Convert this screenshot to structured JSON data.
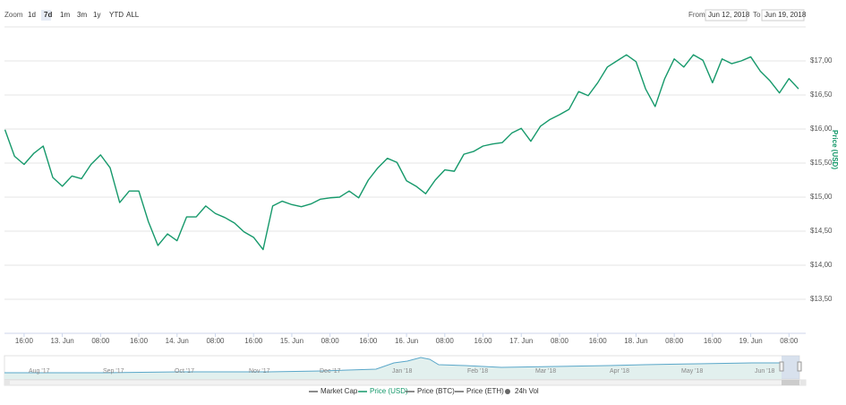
{
  "toolbar": {
    "zoom_label": "Zoom",
    "zoom_buttons": [
      "1d",
      "7d",
      "1m",
      "3m",
      "1y",
      "YTD",
      "ALL"
    ],
    "active_button": 1,
    "from_label": "From",
    "from_date": "Jun 12, 2018",
    "to_label": "To",
    "to_date": "Jun 19, 2018"
  },
  "chart_data": {
    "type": "line",
    "ylabel": "Price (USD)",
    "x": [
      12,
      14,
      16,
      18,
      20,
      22,
      24,
      26,
      28,
      30,
      32,
      34,
      36,
      38,
      40,
      42,
      44,
      46,
      48,
      50,
      52,
      54,
      56,
      58,
      60,
      62,
      64,
      66,
      68,
      70,
      72,
      74,
      76,
      78,
      80,
      82,
      84,
      86,
      88,
      90,
      92,
      94,
      96,
      98,
      100,
      102,
      104,
      106,
      108,
      110,
      112,
      114,
      116,
      118,
      120,
      122,
      124,
      126,
      128,
      130,
      132,
      134,
      136,
      138,
      140,
      142,
      144,
      146,
      148,
      150,
      152,
      154,
      156,
      158,
      160,
      162,
      164,
      166,
      168,
      170,
      172,
      174,
      176,
      178
    ],
    "series": [
      {
        "name": "Price (USD)",
        "color": "#16996b",
        "values": [
          15.99,
          15.6,
          15.48,
          15.64,
          15.75,
          15.29,
          15.16,
          15.31,
          15.27,
          15.48,
          15.62,
          15.43,
          14.92,
          15.09,
          15.09,
          14.64,
          14.29,
          14.46,
          14.36,
          14.71,
          14.71,
          14.87,
          14.76,
          14.7,
          14.62,
          14.49,
          14.41,
          14.23,
          14.87,
          14.94,
          14.89,
          14.86,
          14.9,
          14.97,
          14.99,
          15.0,
          15.09,
          14.99,
          15.25,
          15.43,
          15.57,
          15.51,
          15.24,
          15.16,
          15.05,
          15.25,
          15.4,
          15.38,
          15.63,
          15.67,
          15.75,
          15.78,
          15.8,
          15.94,
          16.01,
          15.82,
          16.04,
          16.14,
          16.21,
          16.29,
          16.55,
          16.49,
          16.68,
          16.91,
          17.0,
          17.09,
          16.99,
          16.59,
          16.33,
          16.74,
          17.03,
          16.91,
          17.09,
          17.01,
          16.68,
          17.03,
          16.96,
          17.0,
          17.06,
          16.85,
          16.71,
          16.53,
          16.74,
          16.59
        ]
      }
    ],
    "xlim": [
      11.9,
      179.5
    ],
    "xticks": [
      {
        "value": 16,
        "label": "16:00"
      },
      {
        "value": 24,
        "label": "13. Jun"
      },
      {
        "value": 32,
        "label": "08:00"
      },
      {
        "value": 40,
        "label": "16:00"
      },
      {
        "value": 48,
        "label": "14. Jun"
      },
      {
        "value": 56,
        "label": "08:00"
      },
      {
        "value": 64,
        "label": "16:00"
      },
      {
        "value": 72,
        "label": "15. Jun"
      },
      {
        "value": 80,
        "label": "08:00"
      },
      {
        "value": 88,
        "label": "16:00"
      },
      {
        "value": 96,
        "label": "16. Jun"
      },
      {
        "value": 104,
        "label": "08:00"
      },
      {
        "value": 112,
        "label": "16:00"
      },
      {
        "value": 120,
        "label": "17. Jun"
      },
      {
        "value": 128,
        "label": "08:00"
      },
      {
        "value": 136,
        "label": "16:00"
      },
      {
        "value": 144,
        "label": "18. Jun"
      },
      {
        "value": 152,
        "label": "08:00"
      },
      {
        "value": 160,
        "label": "16:00"
      },
      {
        "value": 168,
        "label": "19. Jun"
      },
      {
        "value": 176,
        "label": "08:00"
      }
    ],
    "ylim": [
      13,
      17.5
    ],
    "yticks": [
      {
        "value": 13.5,
        "label": "$13,50"
      },
      {
        "value": 14,
        "label": "$14,00"
      },
      {
        "value": 14.5,
        "label": "$14,50"
      },
      {
        "value": 15,
        "label": "$15,00"
      },
      {
        "value": 15.5,
        "label": "$15,50"
      },
      {
        "value": 16,
        "label": "$16,00"
      },
      {
        "value": 16.5,
        "label": "$16,50"
      },
      {
        "value": 17,
        "label": "$17,00"
      }
    ],
    "grid": true
  },
  "navigator": {
    "labels": [
      "Aug '17",
      "Sep '17",
      "Oct '17",
      "Nov '17",
      "Dec '17",
      "Jan '18",
      "Feb '18",
      "Mar '18",
      "Apr '18",
      "May '18",
      "Jun '18"
    ]
  },
  "legend": [
    {
      "name": "Market Cap",
      "color": "#666666",
      "symbol": "line"
    },
    {
      "name": "Price (USD)",
      "color": "#16996b",
      "symbol": "line"
    },
    {
      "name": "Price (BTC)",
      "color": "#666666",
      "symbol": "line"
    },
    {
      "name": "Price (ETH)",
      "color": "#666666",
      "symbol": "line"
    },
    {
      "name": "24h Vol",
      "color": "#666666",
      "symbol": "circle"
    }
  ]
}
